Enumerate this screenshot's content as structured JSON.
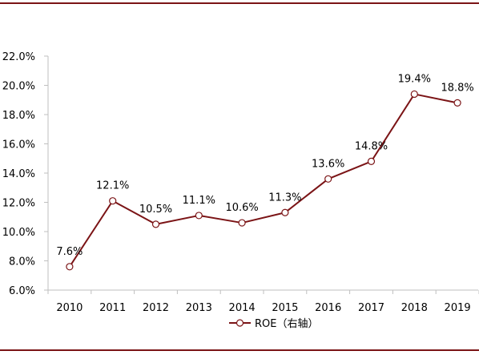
{
  "colors": {
    "series": "#7b1416",
    "frame": "#7b1416",
    "axis": "#bfbfbf",
    "marker_fill": "#ffffff",
    "text": "#000000"
  },
  "chart_data": {
    "type": "line",
    "title": "",
    "xlabel": "",
    "ylabel": "",
    "x": [
      "2010",
      "2011",
      "2012",
      "2013",
      "2014",
      "2015",
      "2016",
      "2017",
      "2018",
      "2019"
    ],
    "ylim": [
      6.0,
      22.0
    ],
    "y_ticks": [
      6.0,
      8.0,
      10.0,
      12.0,
      14.0,
      16.0,
      18.0,
      20.0,
      22.0
    ],
    "y_tick_labels": [
      "6.0%",
      "8.0%",
      "10.0%",
      "12.0%",
      "14.0%",
      "16.0%",
      "18.0%",
      "20.0%",
      "22.0%"
    ],
    "grid": false,
    "legend_position": "bottom",
    "series": [
      {
        "name": "ROE（右轴）",
        "values": [
          7.6,
          12.1,
          10.5,
          11.1,
          10.6,
          11.3,
          13.6,
          14.8,
          19.4,
          18.8
        ],
        "labels": [
          "7.6%",
          "12.1%",
          "10.5%",
          "11.1%",
          "10.6%",
          "11.3%",
          "13.6%",
          "14.8%",
          "19.4%",
          "18.8%"
        ],
        "marker": "open-circle"
      }
    ]
  }
}
